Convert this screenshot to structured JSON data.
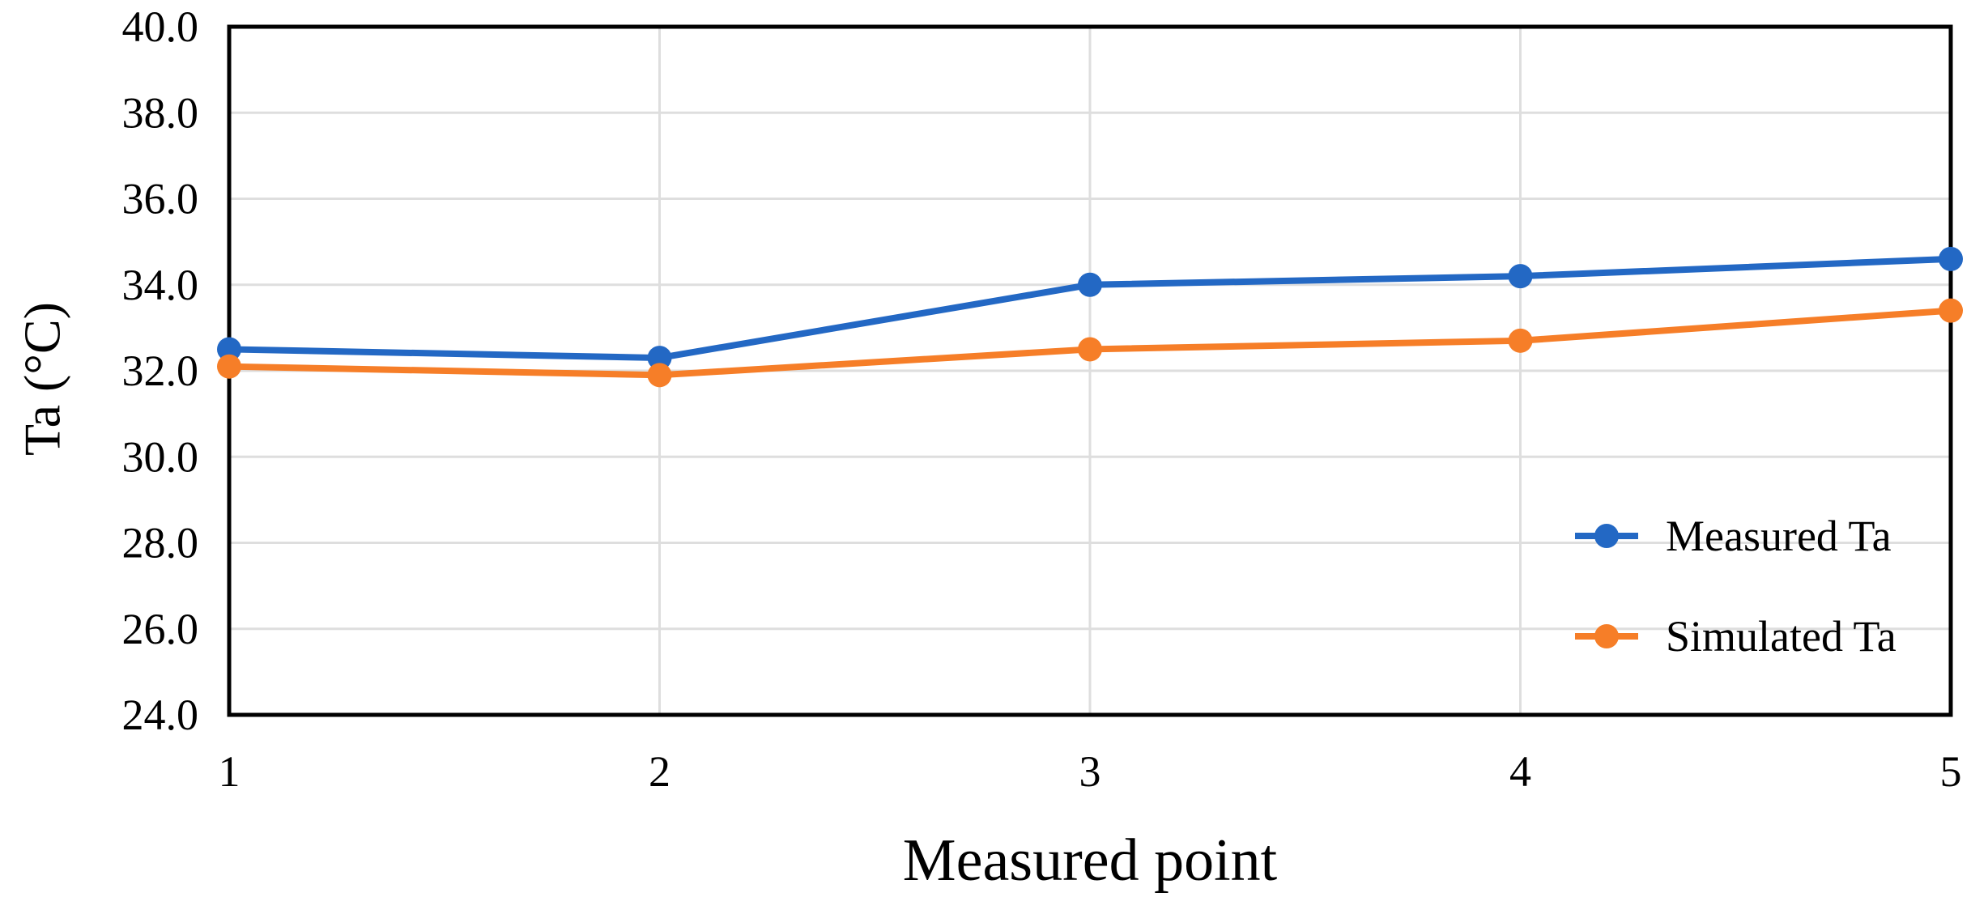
{
  "chart_data": {
    "type": "line",
    "title": "",
    "xlabel": "Measured point",
    "ylabel": "Ta (°C)",
    "x": [
      1,
      2,
      3,
      4,
      5
    ],
    "xtick_labels": [
      "1",
      "2",
      "3",
      "4",
      "5"
    ],
    "ytick_labels": [
      "24.0",
      "26.0",
      "28.0",
      "30.0",
      "32.0",
      "34.0",
      "36.0",
      "38.0",
      "40.0"
    ],
    "ylim": [
      24.0,
      40.0
    ],
    "ytick_step": 2.0,
    "grid": "horizontal and vertical gridlines, light gray",
    "legend_position": "inside lower right",
    "series": [
      {
        "name": "Measured Ta",
        "color": "#2368C4",
        "values": [
          32.5,
          32.3,
          34.0,
          34.2,
          34.6
        ]
      },
      {
        "name": "Simulated Ta",
        "color": "#F67E28",
        "values": [
          32.1,
          31.9,
          32.5,
          32.7,
          33.4
        ]
      }
    ],
    "colors": {
      "axis": "#000000",
      "gridline": "#DEDEDE",
      "background": "#FFFFFF",
      "text": "#000000"
    }
  }
}
